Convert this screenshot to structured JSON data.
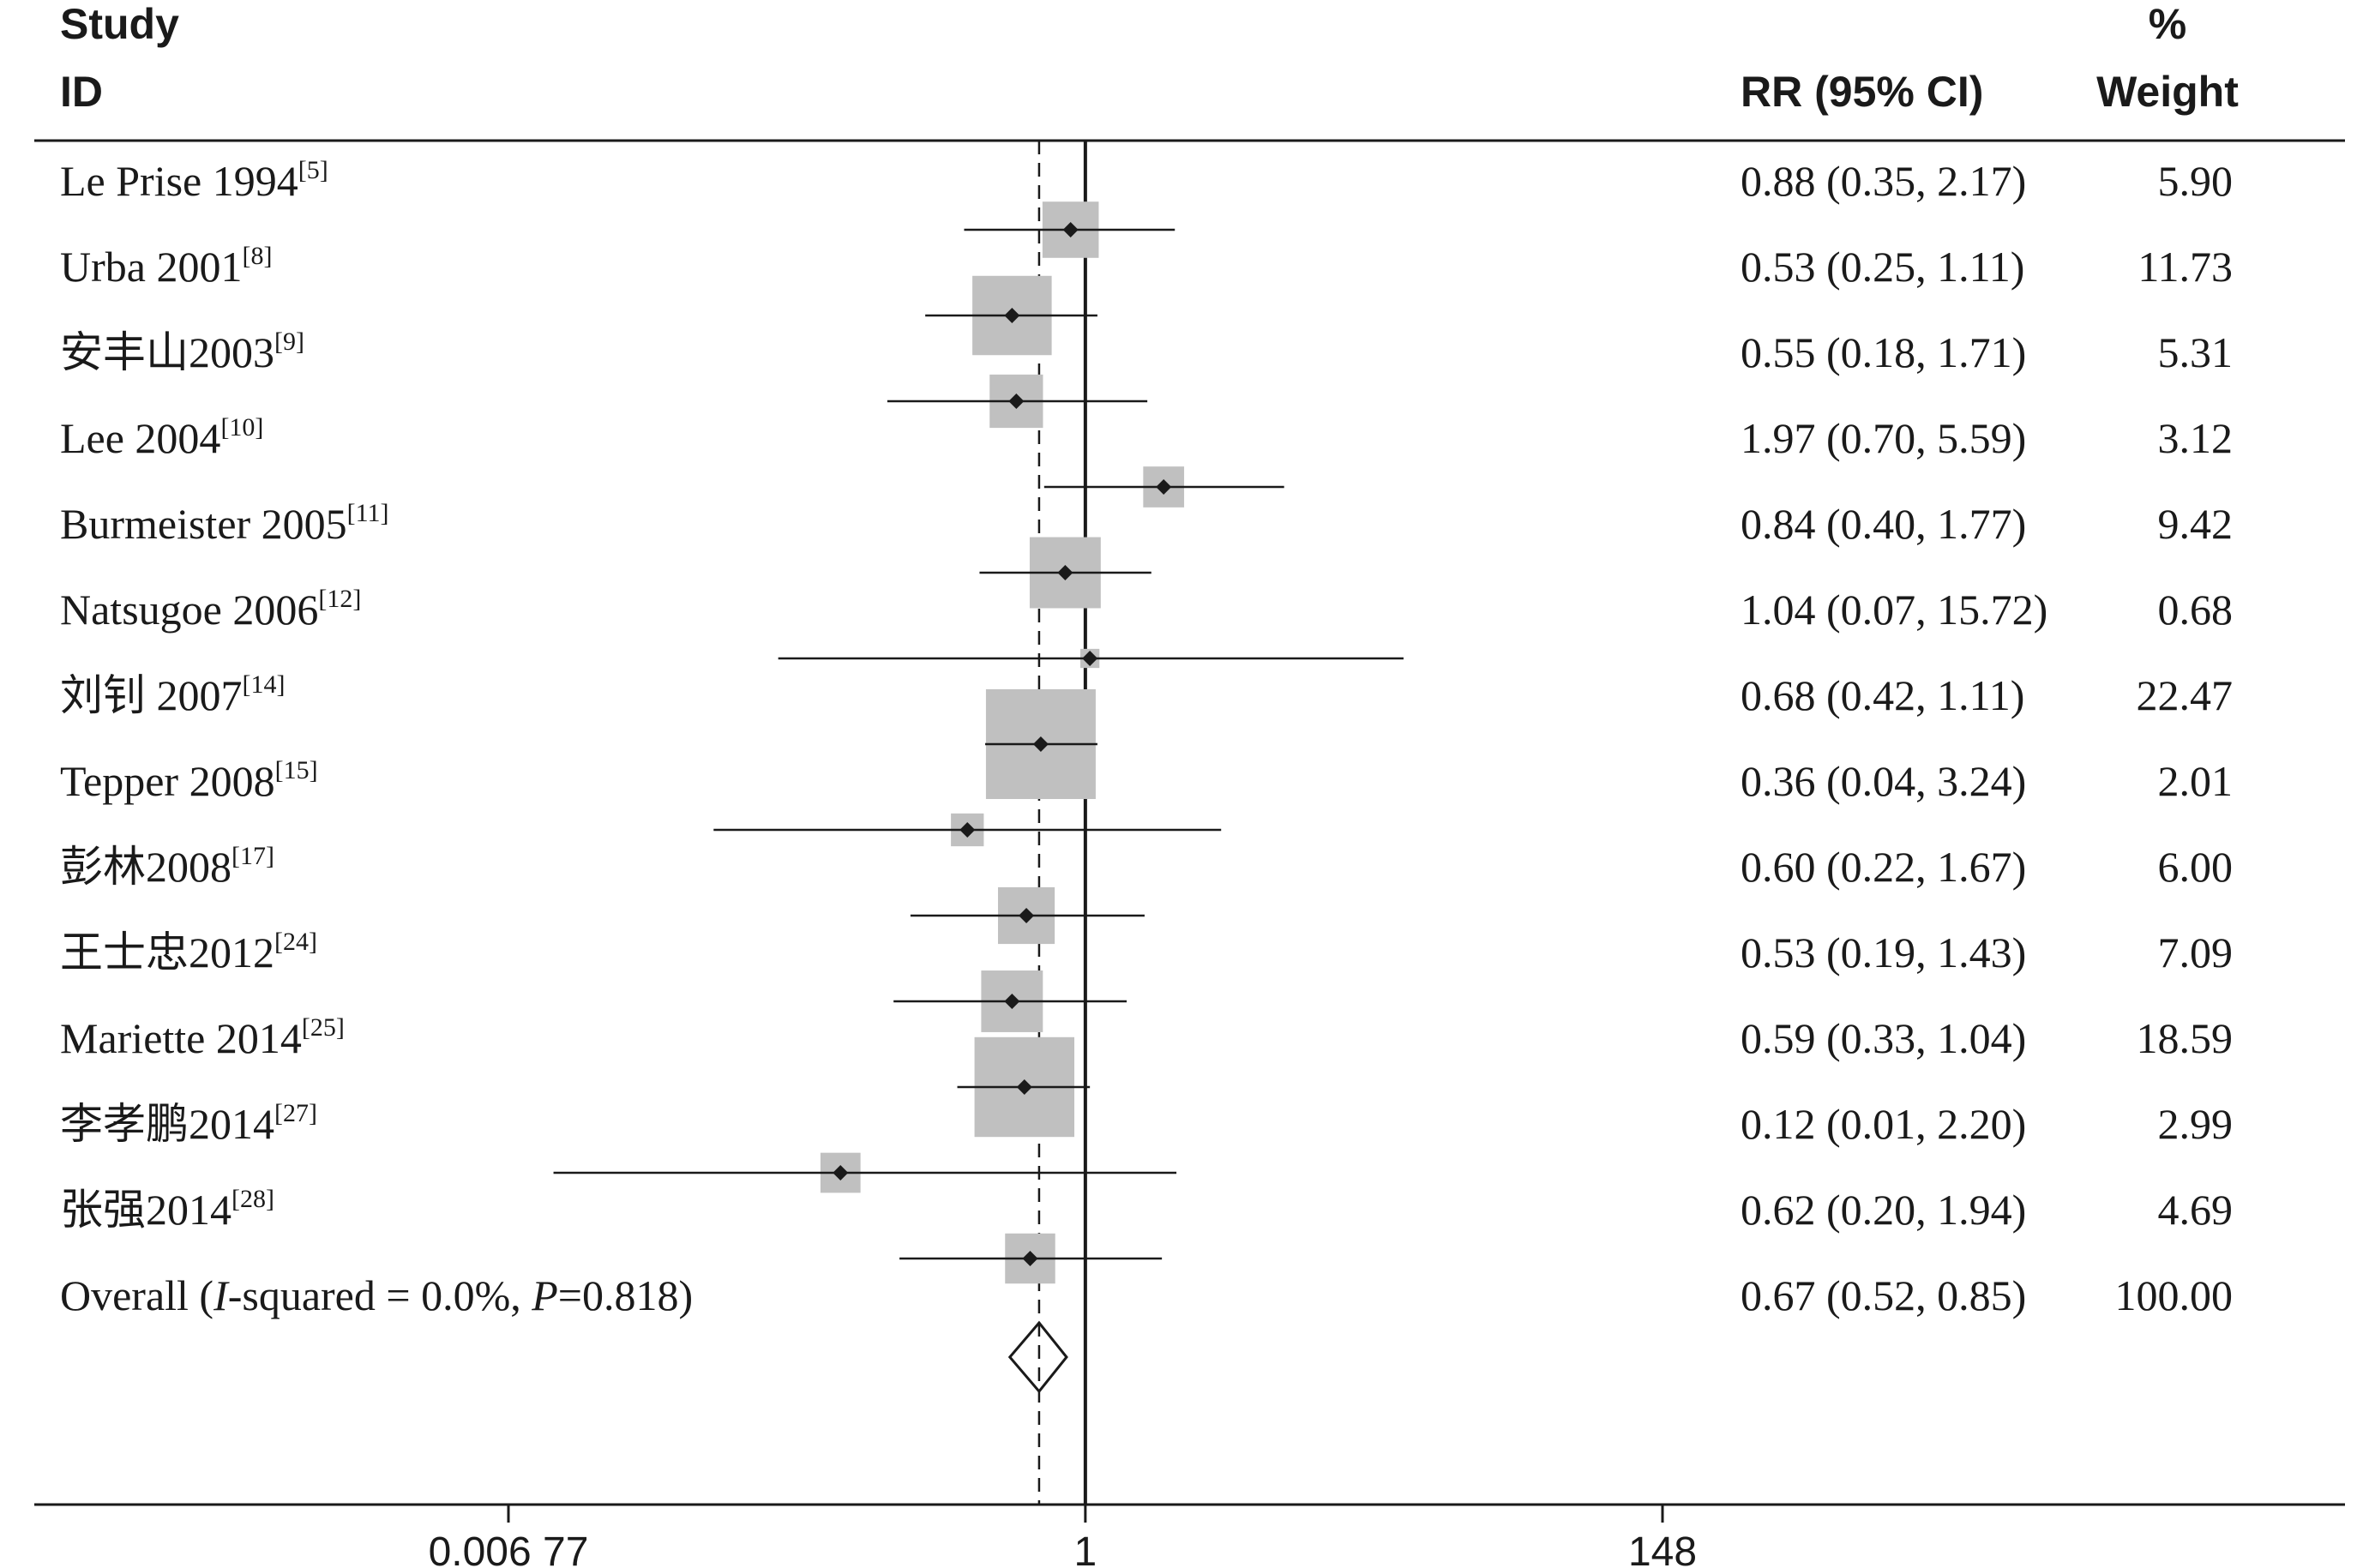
{
  "chart_data": {
    "type": "forest",
    "headers": {
      "study_line1": "Study",
      "study_line2": "ID",
      "effect": "RR (95% CI)",
      "weight_line1": "%",
      "weight_line2": "Weight"
    },
    "x_scale": "log",
    "x_ticks": [
      {
        "value": 0.00677,
        "label": "0.006 77"
      },
      {
        "value": 1,
        "label": "1"
      },
      {
        "value": 148,
        "label": "148"
      }
    ],
    "xlim": [
      0.00677,
      148
    ],
    "null_line": 1,
    "studies": [
      {
        "name": "Le Prise 1994",
        "ref": "[5]",
        "rr": 0.88,
        "lower": 0.35,
        "upper": 2.17,
        "ci_text": "0.88 (0.35, 2.17)",
        "weight": 5.9,
        "weight_text": "5.90"
      },
      {
        "name": "Urba 2001",
        "ref": "[8]",
        "rr": 0.53,
        "lower": 0.25,
        "upper": 1.11,
        "ci_text": "0.53 (0.25, 1.11)",
        "weight": 11.73,
        "weight_text": "11.73"
      },
      {
        "name": "安丰山2003",
        "ref": "[9]",
        "rr": 0.55,
        "lower": 0.18,
        "upper": 1.71,
        "ci_text": "0.55 (0.18, 1.71)",
        "weight": 5.31,
        "weight_text": "5.31"
      },
      {
        "name": "Lee 2004",
        "ref": "[10]",
        "rr": 1.97,
        "lower": 0.7,
        "upper": 5.59,
        "ci_text": "1.97 (0.70, 5.59)",
        "weight": 3.12,
        "weight_text": "3.12"
      },
      {
        "name": "Burmeister 2005",
        "ref": "[11]",
        "rr": 0.84,
        "lower": 0.4,
        "upper": 1.77,
        "ci_text": "0.84 (0.40, 1.77)",
        "weight": 9.42,
        "weight_text": "9.42"
      },
      {
        "name": "Natsugoe 2006",
        "ref": "[12]",
        "rr": 1.04,
        "lower": 0.07,
        "upper": 15.72,
        "ci_text": "1.04 (0.07, 15.72)",
        "weight": 0.68,
        "weight_text": "0.68"
      },
      {
        "name": "刘钊 2007",
        "ref": "[14]",
        "rr": 0.68,
        "lower": 0.42,
        "upper": 1.11,
        "ci_text": "0.68 (0.42, 1.11)",
        "weight": 22.47,
        "weight_text": "22.47"
      },
      {
        "name": "Tepper 2008",
        "ref": "[15]",
        "rr": 0.36,
        "lower": 0.04,
        "upper": 3.24,
        "ci_text": "0.36 (0.04, 3.24)",
        "weight": 2.01,
        "weight_text": "2.01"
      },
      {
        "name": "彭林2008",
        "ref": "[17]",
        "rr": 0.6,
        "lower": 0.22,
        "upper": 1.67,
        "ci_text": "0.60 (0.22, 1.67)",
        "weight": 6.0,
        "weight_text": "6.00"
      },
      {
        "name": "王士忠2012",
        "ref": "[24]",
        "rr": 0.53,
        "lower": 0.19,
        "upper": 1.43,
        "ci_text": "0.53 (0.19, 1.43)",
        "weight": 7.09,
        "weight_text": "7.09"
      },
      {
        "name": "Mariette 2014",
        "ref": "[25]",
        "rr": 0.59,
        "lower": 0.33,
        "upper": 1.04,
        "ci_text": "0.59 (0.33, 1.04)",
        "weight": 18.59,
        "weight_text": "18.59"
      },
      {
        "name": "李孝鹏2014",
        "ref": "[27]",
        "rr": 0.12,
        "lower": 0.01,
        "upper": 2.2,
        "ci_text": "0.12 (0.01, 2.20)",
        "weight": 2.99,
        "weight_text": "2.99"
      },
      {
        "name": "张强2014",
        "ref": "[28]",
        "rr": 0.62,
        "lower": 0.2,
        "upper": 1.94,
        "ci_text": "0.62 (0.20, 1.94)",
        "weight": 4.69,
        "weight_text": "4.69"
      }
    ],
    "overall": {
      "prefix": "Overall (",
      "i2_italic": "I",
      "i2_text": "-squared = 0.0%, ",
      "p_italic": "P",
      "p_text": "=0.818)",
      "rr": 0.67,
      "lower": 0.52,
      "upper": 0.85,
      "ci_text": "0.67 (0.52, 0.85)",
      "weight_text": "100.00"
    }
  }
}
